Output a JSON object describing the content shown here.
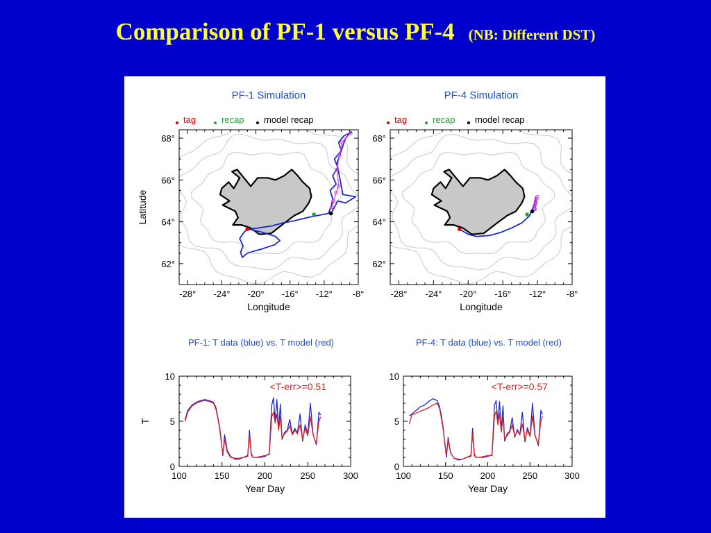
{
  "slide": {
    "title": "Comparison of PF-1 versus PF-4",
    "title_note": "NB: Different DST",
    "paren_open": "(",
    "paren_close": ")"
  },
  "colors": {
    "background": "#0000cc",
    "title": "#ffff33",
    "panel_title": "#1a4fd6",
    "track": "#1a28d0",
    "model": "#e02020",
    "tag_marker": "#e00000",
    "recap_marker": "#22a03a",
    "model_recap_marker": "#000000",
    "model_track": "#e040e0",
    "land": "#c8c8c8",
    "depth_contour": "#c8c8c8"
  },
  "chart_data": [
    {
      "type": "map",
      "title": "PF-1 Simulation",
      "legend": [
        {
          "label": "tag",
          "color": "#e00000"
        },
        {
          "label": "recap",
          "color": "#22a03a"
        },
        {
          "label": "model recap",
          "color": "#000000"
        }
      ],
      "xlabel": "Longitude",
      "ylabel": "Latitude",
      "xlim": [
        -29,
        -8
      ],
      "ylim": [
        61,
        68.4
      ],
      "xticks": [
        -28,
        -24,
        -20,
        -16,
        -12,
        -8
      ],
      "xticklabels": [
        "-28°",
        "-24°",
        "-20°",
        "-16°",
        "-12°",
        "-8°"
      ],
      "yticks": [
        62,
        64,
        66,
        68
      ],
      "yticklabels": [
        "62°",
        "64°",
        "66°",
        "68°"
      ],
      "markers": {
        "tag": [
          -21,
          63.65
        ],
        "recap": [
          -13.2,
          64.35
        ],
        "model_recap": [
          -11.2,
          64.4
        ]
      },
      "track": [
        [
          -21.0,
          63.65
        ],
        [
          -20.3,
          63.6
        ],
        [
          -19.2,
          63.5
        ],
        [
          -18.5,
          63.4
        ],
        [
          -17.7,
          63.3
        ],
        [
          -17.2,
          63.1
        ],
        [
          -17.8,
          62.9
        ],
        [
          -18.6,
          62.8
        ],
        [
          -19.3,
          62.7
        ],
        [
          -20.2,
          62.6
        ],
        [
          -21.0,
          62.5
        ],
        [
          -21.6,
          62.3
        ],
        [
          -21.8,
          62.55
        ],
        [
          -21.5,
          62.85
        ],
        [
          -21.9,
          63.2
        ],
        [
          -21.4,
          63.5
        ],
        [
          -21.0,
          63.65
        ],
        [
          -19.8,
          63.7
        ],
        [
          -18.2,
          63.8
        ],
        [
          -16.8,
          63.95
        ],
        [
          -15.5,
          64.05
        ],
        [
          -14.0,
          64.2
        ],
        [
          -12.8,
          64.3
        ],
        [
          -11.5,
          64.4
        ],
        [
          -11.2,
          64.7
        ],
        [
          -11.0,
          65.1
        ],
        [
          -11.3,
          65.5
        ],
        [
          -10.6,
          65.8
        ],
        [
          -11.0,
          66.2
        ],
        [
          -10.4,
          66.6
        ],
        [
          -10.8,
          67.0
        ],
        [
          -10.0,
          67.4
        ],
        [
          -10.3,
          67.8
        ],
        [
          -9.7,
          68.1
        ],
        [
          -8.8,
          68.3
        ],
        [
          -9.5,
          68.0
        ],
        [
          -10.5,
          66.8
        ],
        [
          -9.8,
          65.3
        ],
        [
          -8.3,
          65.2
        ],
        [
          -9.5,
          64.9
        ],
        [
          -10.4,
          65.0
        ],
        [
          -11.2,
          64.4
        ]
      ],
      "model_track": [
        [
          -11.1,
          64.7
        ],
        [
          -10.9,
          65.0
        ],
        [
          -10.6,
          65.4
        ],
        [
          -10.3,
          65.7
        ],
        [
          -10.5,
          66.5
        ],
        [
          -10.2,
          67.2
        ],
        [
          -9.9,
          67.8
        ],
        [
          -8.9,
          68.25
        ]
      ]
    },
    {
      "type": "map",
      "title": "PF-4 Simulation",
      "legend": [
        {
          "label": "tag",
          "color": "#e00000"
        },
        {
          "label": "recap",
          "color": "#22a03a"
        },
        {
          "label": "model recap",
          "color": "#000000"
        }
      ],
      "xlabel": "Longitude",
      "ylabel": "",
      "xlim": [
        -29,
        -8
      ],
      "ylim": [
        61,
        68.4
      ],
      "xticks": [
        -28,
        -24,
        -20,
        -16,
        -12,
        -8
      ],
      "xticklabels": [
        "-28°",
        "-24°",
        "-20°",
        "-16°",
        "-12°",
        "-8°"
      ],
      "yticks": [
        62,
        64,
        66,
        68
      ],
      "yticklabels": [
        "62°",
        "64°",
        "66°",
        "68°"
      ],
      "markers": {
        "tag": [
          -21,
          63.65
        ],
        "recap": [
          -13.2,
          64.35
        ],
        "model_recap": [
          -12.6,
          64.5
        ]
      },
      "track": [
        [
          -21.0,
          63.65
        ],
        [
          -20.0,
          63.4
        ],
        [
          -19.0,
          63.3
        ],
        [
          -17.5,
          63.35
        ],
        [
          -16.2,
          63.5
        ],
        [
          -15.0,
          63.7
        ],
        [
          -13.8,
          63.95
        ],
        [
          -12.9,
          64.3
        ],
        [
          -12.4,
          64.8
        ],
        [
          -12.2,
          65.2
        ],
        [
          -12.4,
          64.7
        ],
        [
          -12.1,
          65.0
        ],
        [
          -12.3,
          64.55
        ]
      ],
      "model_track": [
        [
          -12.6,
          64.5
        ],
        [
          -12.3,
          64.8
        ],
        [
          -12.1,
          65.1
        ],
        [
          -12.2,
          64.9
        ],
        [
          -12.0,
          65.2
        ],
        [
          -12.3,
          64.6
        ]
      ]
    },
    {
      "type": "line",
      "title": "PF-1: T data (blue) vs. T model (red)",
      "annotation": "<T-err>=0.51",
      "xlabel": "Year Day",
      "ylabel": "T",
      "xlim": [
        100,
        300
      ],
      "ylim": [
        0,
        10
      ],
      "xticks": [
        100,
        150,
        200,
        250,
        300
      ],
      "yticks": [
        0,
        5,
        10
      ],
      "series": [
        {
          "color": "#1a28d0",
          "x": [
            107,
            110,
            115,
            120,
            125,
            130,
            135,
            140,
            143,
            145,
            147,
            149,
            151,
            153,
            156,
            160,
            165,
            170,
            175,
            180,
            182,
            184,
            186,
            190,
            195,
            200,
            205,
            208,
            210,
            212,
            214,
            216,
            218,
            220,
            223,
            226,
            229,
            232,
            235,
            238,
            241,
            244,
            247,
            250,
            253,
            256,
            258,
            260,
            263,
            265
          ],
          "values": [
            5.2,
            6.2,
            6.8,
            7.1,
            7.3,
            7.4,
            7.3,
            7.1,
            6.5,
            5.5,
            4.5,
            3.0,
            1.2,
            3.5,
            1.8,
            1.1,
            0.8,
            0.8,
            1.0,
            1.2,
            4.0,
            1.5,
            1.0,
            1.0,
            1.0,
            1.1,
            1.4,
            6.8,
            7.6,
            5.0,
            7.4,
            4.0,
            6.9,
            3.0,
            3.8,
            4.0,
            5.2,
            3.6,
            4.2,
            3.7,
            5.8,
            2.8,
            4.6,
            3.6,
            7.0,
            3.7,
            3.0,
            2.4,
            6.0,
            5.7
          ]
        },
        {
          "color": "#e02020",
          "x": [
            107,
            110,
            115,
            120,
            125,
            130,
            135,
            140,
            143,
            145,
            147,
            149,
            151,
            153,
            156,
            160,
            165,
            170,
            175,
            180,
            182,
            184,
            186,
            190,
            195,
            200,
            205,
            208,
            210,
            212,
            214,
            216,
            218,
            220,
            223,
            226,
            229,
            232,
            235,
            238,
            241,
            244,
            247,
            250,
            253,
            256,
            258,
            260,
            263,
            265
          ],
          "values": [
            5.0,
            6.0,
            6.7,
            7.0,
            7.2,
            7.3,
            7.2,
            7.0,
            6.3,
            5.4,
            4.3,
            2.8,
            1.4,
            3.0,
            1.6,
            1.0,
            0.9,
            0.9,
            1.0,
            1.1,
            3.5,
            1.3,
            1.0,
            1.0,
            1.1,
            1.2,
            1.3,
            5.5,
            6.0,
            4.8,
            5.8,
            4.0,
            5.5,
            3.2,
            3.6,
            3.9,
            4.5,
            3.5,
            4.0,
            3.6,
            4.6,
            3.0,
            4.2,
            3.4,
            5.5,
            3.6,
            3.0,
            2.6,
            5.0,
            5.5
          ]
        }
      ]
    },
    {
      "type": "line",
      "title": "PF-4: T data (blue) vs. T model (red)",
      "annotation": "<T-err>=0.57",
      "xlabel": "Year Day",
      "ylabel": "",
      "xlim": [
        100,
        300
      ],
      "ylim": [
        0,
        10
      ],
      "xticks": [
        100,
        150,
        200,
        250,
        300
      ],
      "yticks": [
        0,
        5,
        10
      ],
      "series": [
        {
          "color": "#1a28d0",
          "x": [
            107,
            110,
            115,
            120,
            125,
            130,
            135,
            140,
            143,
            145,
            147,
            149,
            151,
            153,
            156,
            160,
            165,
            170,
            175,
            180,
            182,
            184,
            186,
            190,
            195,
            200,
            205,
            208,
            210,
            212,
            214,
            216,
            218,
            220,
            223,
            226,
            229,
            232,
            235,
            238,
            241,
            244,
            247,
            250,
            253,
            256,
            258,
            260,
            263,
            265
          ],
          "values": [
            5.6,
            5.8,
            6.2,
            6.6,
            6.8,
            7.2,
            7.5,
            7.3,
            6.6,
            5.6,
            4.4,
            2.6,
            1.0,
            3.2,
            1.5,
            0.9,
            0.7,
            0.8,
            1.0,
            1.2,
            4.2,
            1.4,
            1.0,
            1.0,
            1.0,
            1.1,
            1.3,
            6.8,
            7.3,
            4.8,
            7.2,
            3.9,
            6.7,
            2.8,
            3.6,
            3.9,
            5.4,
            3.2,
            4.1,
            3.5,
            6.0,
            2.7,
            4.3,
            3.4,
            7.0,
            3.5,
            2.9,
            2.3,
            6.2,
            5.8
          ]
        },
        {
          "color": "#e02020",
          "x": [
            107,
            110,
            115,
            120,
            125,
            130,
            135,
            140,
            143,
            145,
            147,
            149,
            151,
            153,
            156,
            160,
            165,
            170,
            175,
            180,
            182,
            184,
            186,
            190,
            195,
            200,
            205,
            208,
            210,
            212,
            214,
            216,
            218,
            220,
            223,
            226,
            229,
            232,
            235,
            238,
            241,
            244,
            247,
            250,
            253,
            256,
            258,
            260,
            263,
            265
          ],
          "values": [
            4.7,
            5.7,
            5.9,
            6.1,
            6.3,
            6.5,
            6.8,
            7.0,
            6.4,
            5.3,
            4.2,
            2.7,
            1.3,
            2.9,
            1.5,
            0.9,
            0.8,
            0.8,
            1.0,
            1.1,
            3.6,
            1.2,
            1.0,
            1.0,
            1.1,
            1.2,
            1.2,
            5.6,
            6.1,
            4.6,
            5.9,
            3.8,
            5.4,
            3.0,
            3.4,
            3.8,
            4.6,
            3.3,
            3.9,
            3.5,
            4.7,
            2.9,
            4.0,
            3.3,
            5.6,
            3.4,
            2.9,
            2.5,
            5.1,
            5.6
          ]
        }
      ]
    }
  ]
}
